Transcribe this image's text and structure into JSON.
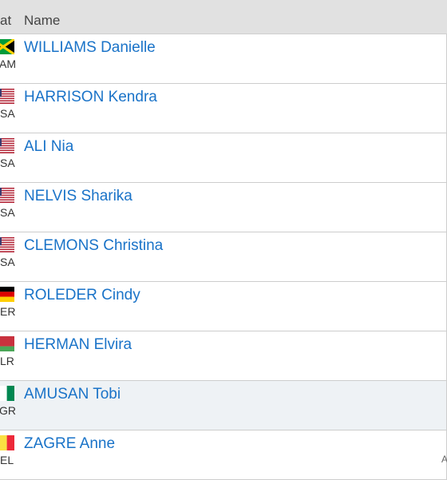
{
  "header": {
    "nat_label": "at",
    "name_label": "Name"
  },
  "rows": [
    {
      "code": "AM",
      "name": "WILLIAMS Danielle",
      "flag": "jamaica-flag-icon",
      "alt": false
    },
    {
      "code": "SA",
      "name": "HARRISON Kendra",
      "flag": "usa-flag-icon",
      "alt": false
    },
    {
      "code": "SA",
      "name": "ALI Nia",
      "flag": "usa-flag-icon",
      "alt": false
    },
    {
      "code": "SA",
      "name": "NELVIS Sharika",
      "flag": "usa-flag-icon",
      "alt": false
    },
    {
      "code": "SA",
      "name": "CLEMONS Christina",
      "flag": "usa-flag-icon",
      "alt": false
    },
    {
      "code": "ER",
      "name": "ROLEDER Cindy",
      "flag": "germany-flag-icon",
      "alt": false
    },
    {
      "code": "LR",
      "name": "HERMAN Elvira",
      "flag": "belarus-flag-icon",
      "alt": false
    },
    {
      "code": "GR",
      "name": "AMUSAN Tobi",
      "flag": "nigeria-flag-icon",
      "alt": true
    },
    {
      "code": "EL",
      "name": "ZAGRE Anne",
      "flag": "belgium-flag-icon",
      "alt": false
    }
  ],
  "edge_text": "A",
  "colors": {
    "link": "#1a73c8",
    "header_bg": "#e1e1e1",
    "alt_row_bg": "#eef2f5",
    "border": "#cdcdcd"
  }
}
